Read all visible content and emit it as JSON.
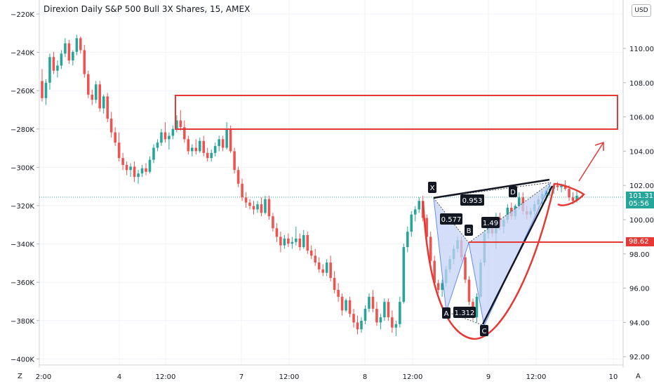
{
  "chart": {
    "title": "Direxion Daily S&P 500 Bull 3X Shares, 15, AMEX",
    "currency": "USD",
    "left_axis_labels": [
      "−220K",
      "−240K",
      "−260K",
      "−280K",
      "−300K",
      "−320K",
      "−340K",
      "−360K",
      "−380K",
      "−400K"
    ],
    "right_axis_labels": [
      "110.00",
      "108.00",
      "106.00",
      "104.00",
      "102.00",
      "100.00",
      "98.00",
      "96.00",
      "94.00",
      "92.00"
    ],
    "x_axis_labels": [
      "2:00",
      "4",
      "12:00",
      "7",
      "12:00",
      "8",
      "12:00",
      "9",
      "12:00",
      "10"
    ],
    "current_price": "101.31",
    "countdown": "05:56",
    "level_price": "98.62",
    "pattern_labels": {
      "x": "X",
      "a": "A",
      "b": "B",
      "c": "C",
      "d": "D"
    },
    "ratio_labels": {
      "xb": "0.577",
      "ac": "1.312",
      "bd": "1.49",
      "xd": "0.953"
    },
    "corner_left": "Z",
    "corner_right": "A",
    "colors": {
      "up": "#26a69a",
      "down": "#ef5350",
      "annotation": "#e53935",
      "level": "#e53935",
      "pattern_fill": "#c5d3f5"
    }
  },
  "chart_data": {
    "type": "candlestick",
    "title": "Direxion Daily S&P 500 Bull 3X Shares, 15, AMEX",
    "interval": "15",
    "y_range_right": [
      91.5,
      111.5
    ],
    "y_range_left": [
      -402000,
      -217000
    ],
    "candles": [
      [
        108.0,
        108.7,
        106.8,
        107.0
      ],
      [
        107.0,
        108.1,
        106.6,
        107.9
      ],
      [
        107.9,
        109.6,
        107.5,
        109.4
      ],
      [
        109.4,
        109.7,
        108.4,
        108.6
      ],
      [
        108.6,
        109.2,
        108.2,
        108.9
      ],
      [
        108.9,
        109.8,
        108.7,
        109.6
      ],
      [
        109.6,
        110.5,
        109.4,
        110.2
      ],
      [
        110.2,
        110.4,
        109.0,
        109.2
      ],
      [
        109.2,
        109.8,
        108.9,
        109.7
      ],
      [
        109.7,
        110.7,
        109.5,
        110.5
      ],
      [
        110.5,
        110.6,
        109.6,
        109.8
      ],
      [
        109.8,
        110.1,
        108.2,
        108.4
      ],
      [
        108.4,
        108.6,
        107.0,
        107.2
      ],
      [
        107.2,
        107.5,
        106.6,
        106.9
      ],
      [
        106.9,
        108.0,
        106.7,
        107.8
      ],
      [
        107.8,
        108.0,
        106.2,
        106.4
      ],
      [
        106.4,
        107.2,
        106.1,
        107.1
      ],
      [
        107.1,
        107.3,
        105.6,
        105.8
      ],
      [
        105.8,
        106.2,
        104.7,
        105.0
      ],
      [
        105.0,
        105.3,
        104.2,
        104.4
      ],
      [
        104.4,
        105.0,
        103.3,
        103.5
      ],
      [
        103.5,
        103.8,
        102.8,
        103.1
      ],
      [
        103.1,
        103.3,
        102.5,
        102.8
      ],
      [
        102.8,
        103.2,
        102.4,
        103.0
      ],
      [
        103.0,
        103.3,
        102.1,
        102.4
      ],
      [
        102.4,
        102.8,
        102.0,
        102.6
      ],
      [
        102.6,
        103.1,
        102.4,
        102.9
      ],
      [
        102.9,
        103.2,
        102.5,
        102.7
      ],
      [
        102.7,
        103.6,
        102.6,
        103.4
      ],
      [
        103.4,
        104.3,
        103.2,
        104.1
      ],
      [
        104.1,
        104.6,
        103.9,
        104.4
      ],
      [
        104.4,
        105.2,
        104.2,
        105.0
      ],
      [
        105.0,
        105.6,
        104.4,
        104.6
      ],
      [
        104.6,
        105.0,
        104.0,
        104.8
      ],
      [
        104.8,
        105.4,
        104.6,
        105.2
      ],
      [
        105.2,
        106.0,
        105.0,
        105.7
      ],
      [
        105.7,
        106.3,
        105.1,
        105.3
      ],
      [
        105.3,
        105.7,
        104.4,
        104.6
      ],
      [
        104.6,
        104.8,
        103.7,
        103.9
      ],
      [
        103.9,
        104.3,
        103.6,
        104.1
      ],
      [
        104.1,
        104.6,
        103.7,
        103.9
      ],
      [
        103.9,
        104.7,
        103.8,
        104.5
      ],
      [
        104.5,
        104.8,
        103.6,
        103.8
      ],
      [
        103.8,
        104.1,
        103.3,
        103.5
      ],
      [
        103.5,
        104.0,
        103.3,
        103.8
      ],
      [
        103.8,
        104.4,
        103.6,
        104.2
      ],
      [
        104.2,
        104.8,
        103.9,
        104.6
      ],
      [
        104.6,
        104.8,
        103.9,
        104.1
      ],
      [
        104.1,
        105.6,
        104.0,
        105.2
      ],
      [
        105.2,
        105.4,
        103.8,
        103.9
      ],
      [
        103.9,
        104.1,
        102.6,
        102.8
      ],
      [
        102.8,
        103.0,
        101.8,
        102.0
      ],
      [
        102.0,
        102.3,
        101.0,
        101.2
      ],
      [
        101.2,
        101.5,
        100.6,
        100.9
      ],
      [
        100.9,
        101.1,
        100.5,
        100.7
      ],
      [
        100.7,
        101.0,
        100.2,
        100.5
      ],
      [
        100.5,
        101.0,
        100.3,
        100.8
      ],
      [
        100.8,
        101.2,
        100.1,
        100.3
      ],
      [
        100.3,
        101.3,
        100.2,
        101.1
      ],
      [
        101.1,
        101.3,
        99.9,
        100.1
      ],
      [
        100.1,
        100.3,
        99.2,
        99.4
      ],
      [
        99.4,
        99.7,
        98.6,
        98.9
      ],
      [
        98.9,
        99.2,
        98.0,
        98.4
      ],
      [
        98.4,
        99.0,
        98.2,
        98.8
      ],
      [
        98.8,
        99.1,
        98.3,
        98.5
      ],
      [
        98.5,
        98.9,
        98.2,
        98.6
      ],
      [
        98.6,
        99.5,
        98.4,
        98.8
      ],
      [
        98.8,
        99.1,
        98.1,
        98.3
      ],
      [
        98.3,
        99.3,
        98.2,
        99.0
      ],
      [
        99.0,
        99.2,
        97.9,
        98.1
      ],
      [
        98.1,
        98.4,
        97.6,
        97.8
      ],
      [
        97.8,
        98.2,
        97.2,
        97.4
      ],
      [
        97.4,
        97.7,
        96.8,
        97.0
      ],
      [
        97.0,
        97.3,
        96.6,
        96.8
      ],
      [
        96.8,
        97.6,
        96.6,
        97.4
      ],
      [
        97.4,
        97.8,
        96.3,
        96.5
      ],
      [
        96.5,
        96.9,
        95.6,
        95.8
      ],
      [
        95.8,
        96.2,
        95.1,
        95.4
      ],
      [
        95.4,
        95.6,
        94.3,
        94.6
      ],
      [
        94.6,
        95.3,
        94.5,
        95.2
      ],
      [
        95.2,
        95.4,
        94.2,
        94.4
      ],
      [
        94.4,
        94.7,
        93.6,
        93.9
      ],
      [
        93.9,
        94.3,
        93.2,
        93.5
      ],
      [
        93.5,
        94.2,
        93.3,
        94.0
      ],
      [
        94.0,
        94.9,
        93.8,
        94.7
      ],
      [
        94.7,
        95.6,
        94.5,
        95.4
      ],
      [
        95.4,
        95.8,
        94.5,
        94.7
      ],
      [
        94.7,
        95.1,
        93.7,
        93.9
      ],
      [
        93.9,
        94.4,
        93.5,
        94.2
      ],
      [
        94.2,
        95.3,
        94.0,
        95.1
      ],
      [
        95.1,
        95.3,
        94.0,
        94.2
      ],
      [
        94.2,
        94.6,
        93.3,
        93.6
      ],
      [
        93.6,
        94.0,
        93.1,
        93.8
      ],
      [
        93.8,
        95.4,
        93.6,
        95.1
      ],
      [
        95.1,
        98.5,
        95.0,
        98.3
      ],
      [
        98.3,
        99.5,
        98.0,
        99.2
      ],
      [
        99.2,
        100.4,
        98.9,
        100.2
      ],
      [
        100.2,
        100.7,
        99.8,
        100.5
      ],
      [
        100.5,
        101.2,
        100.3,
        101.0
      ],
      [
        101.0,
        101.3,
        99.8,
        100.0
      ],
      [
        100.0,
        100.2,
        98.7,
        98.9
      ],
      [
        98.9,
        99.2,
        97.2,
        97.5
      ],
      [
        97.5,
        97.8,
        96.0,
        96.2
      ],
      [
        96.2,
        96.4,
        95.6,
        95.8
      ],
      [
        95.8,
        96.4,
        95.4,
        96.2
      ],
      [
        96.2,
        97.2,
        96.0,
        97.0
      ],
      [
        97.0,
        97.8,
        96.8,
        97.6
      ],
      [
        97.6,
        98.4,
        97.3,
        98.2
      ],
      [
        98.2,
        98.9,
        98.0,
        98.7
      ],
      [
        98.7,
        98.9,
        97.5,
        97.7
      ],
      [
        97.7,
        97.9,
        96.2,
        96.4
      ],
      [
        96.4,
        96.6,
        94.9,
        95.1
      ],
      [
        95.1,
        95.3,
        94.0,
        94.2
      ],
      [
        94.2,
        95.6,
        93.9,
        95.4
      ],
      [
        95.4,
        97.6,
        95.3,
        97.4
      ],
      [
        97.4,
        99.3,
        97.2,
        99.1
      ],
      [
        99.1,
        99.9,
        98.8,
        99.6
      ],
      [
        99.6,
        99.8,
        98.9,
        99.1
      ],
      [
        99.1,
        100.3,
        98.2,
        100.0
      ],
      [
        100.0,
        100.3,
        99.3,
        99.5
      ],
      [
        99.5,
        100.1,
        99.1,
        99.9
      ],
      [
        99.9,
        100.8,
        99.7,
        100.6
      ],
      [
        100.6,
        100.9,
        99.9,
        100.1
      ],
      [
        100.1,
        100.8,
        99.9,
        100.7
      ],
      [
        100.7,
        101.5,
        100.5,
        101.2
      ],
      [
        101.2,
        101.5,
        100.2,
        100.4
      ],
      [
        100.4,
        100.7,
        99.9,
        100.2
      ],
      [
        100.2,
        100.6,
        100.0,
        100.4
      ],
      [
        100.4,
        101.0,
        100.2,
        100.8
      ],
      [
        100.8,
        101.3,
        100.5,
        101.1
      ],
      [
        101.1,
        101.6,
        100.8,
        101.4
      ],
      [
        101.4,
        101.8,
        101.0,
        101.6
      ],
      [
        101.6,
        101.9,
        101.3,
        101.7
      ],
      [
        101.7,
        102.0,
        101.4,
        101.9
      ],
      [
        101.9,
        102.1,
        101.6,
        101.8
      ],
      [
        101.8,
        102.0,
        101.5,
        101.9
      ],
      [
        101.9,
        102.2,
        101.6,
        101.7
      ],
      [
        101.7,
        101.9,
        101.0,
        101.2
      ],
      [
        101.2,
        101.5,
        100.8,
        101.0
      ],
      [
        101.0,
        101.6,
        100.9,
        101.3
      ]
    ],
    "harmonic_pattern": {
      "points": {
        "X": 101.4,
        "A": 94.6,
        "B": 98.6,
        "C": 93.9,
        "D": 101.9
      },
      "ratios": {
        "XB": 0.577,
        "AC": 1.312,
        "BD": 1.49,
        "XD": 0.953
      }
    },
    "resistance_zone": [
      105.2,
      107.1
    ],
    "horizontal_level": 98.62,
    "last_price": 101.31
  }
}
